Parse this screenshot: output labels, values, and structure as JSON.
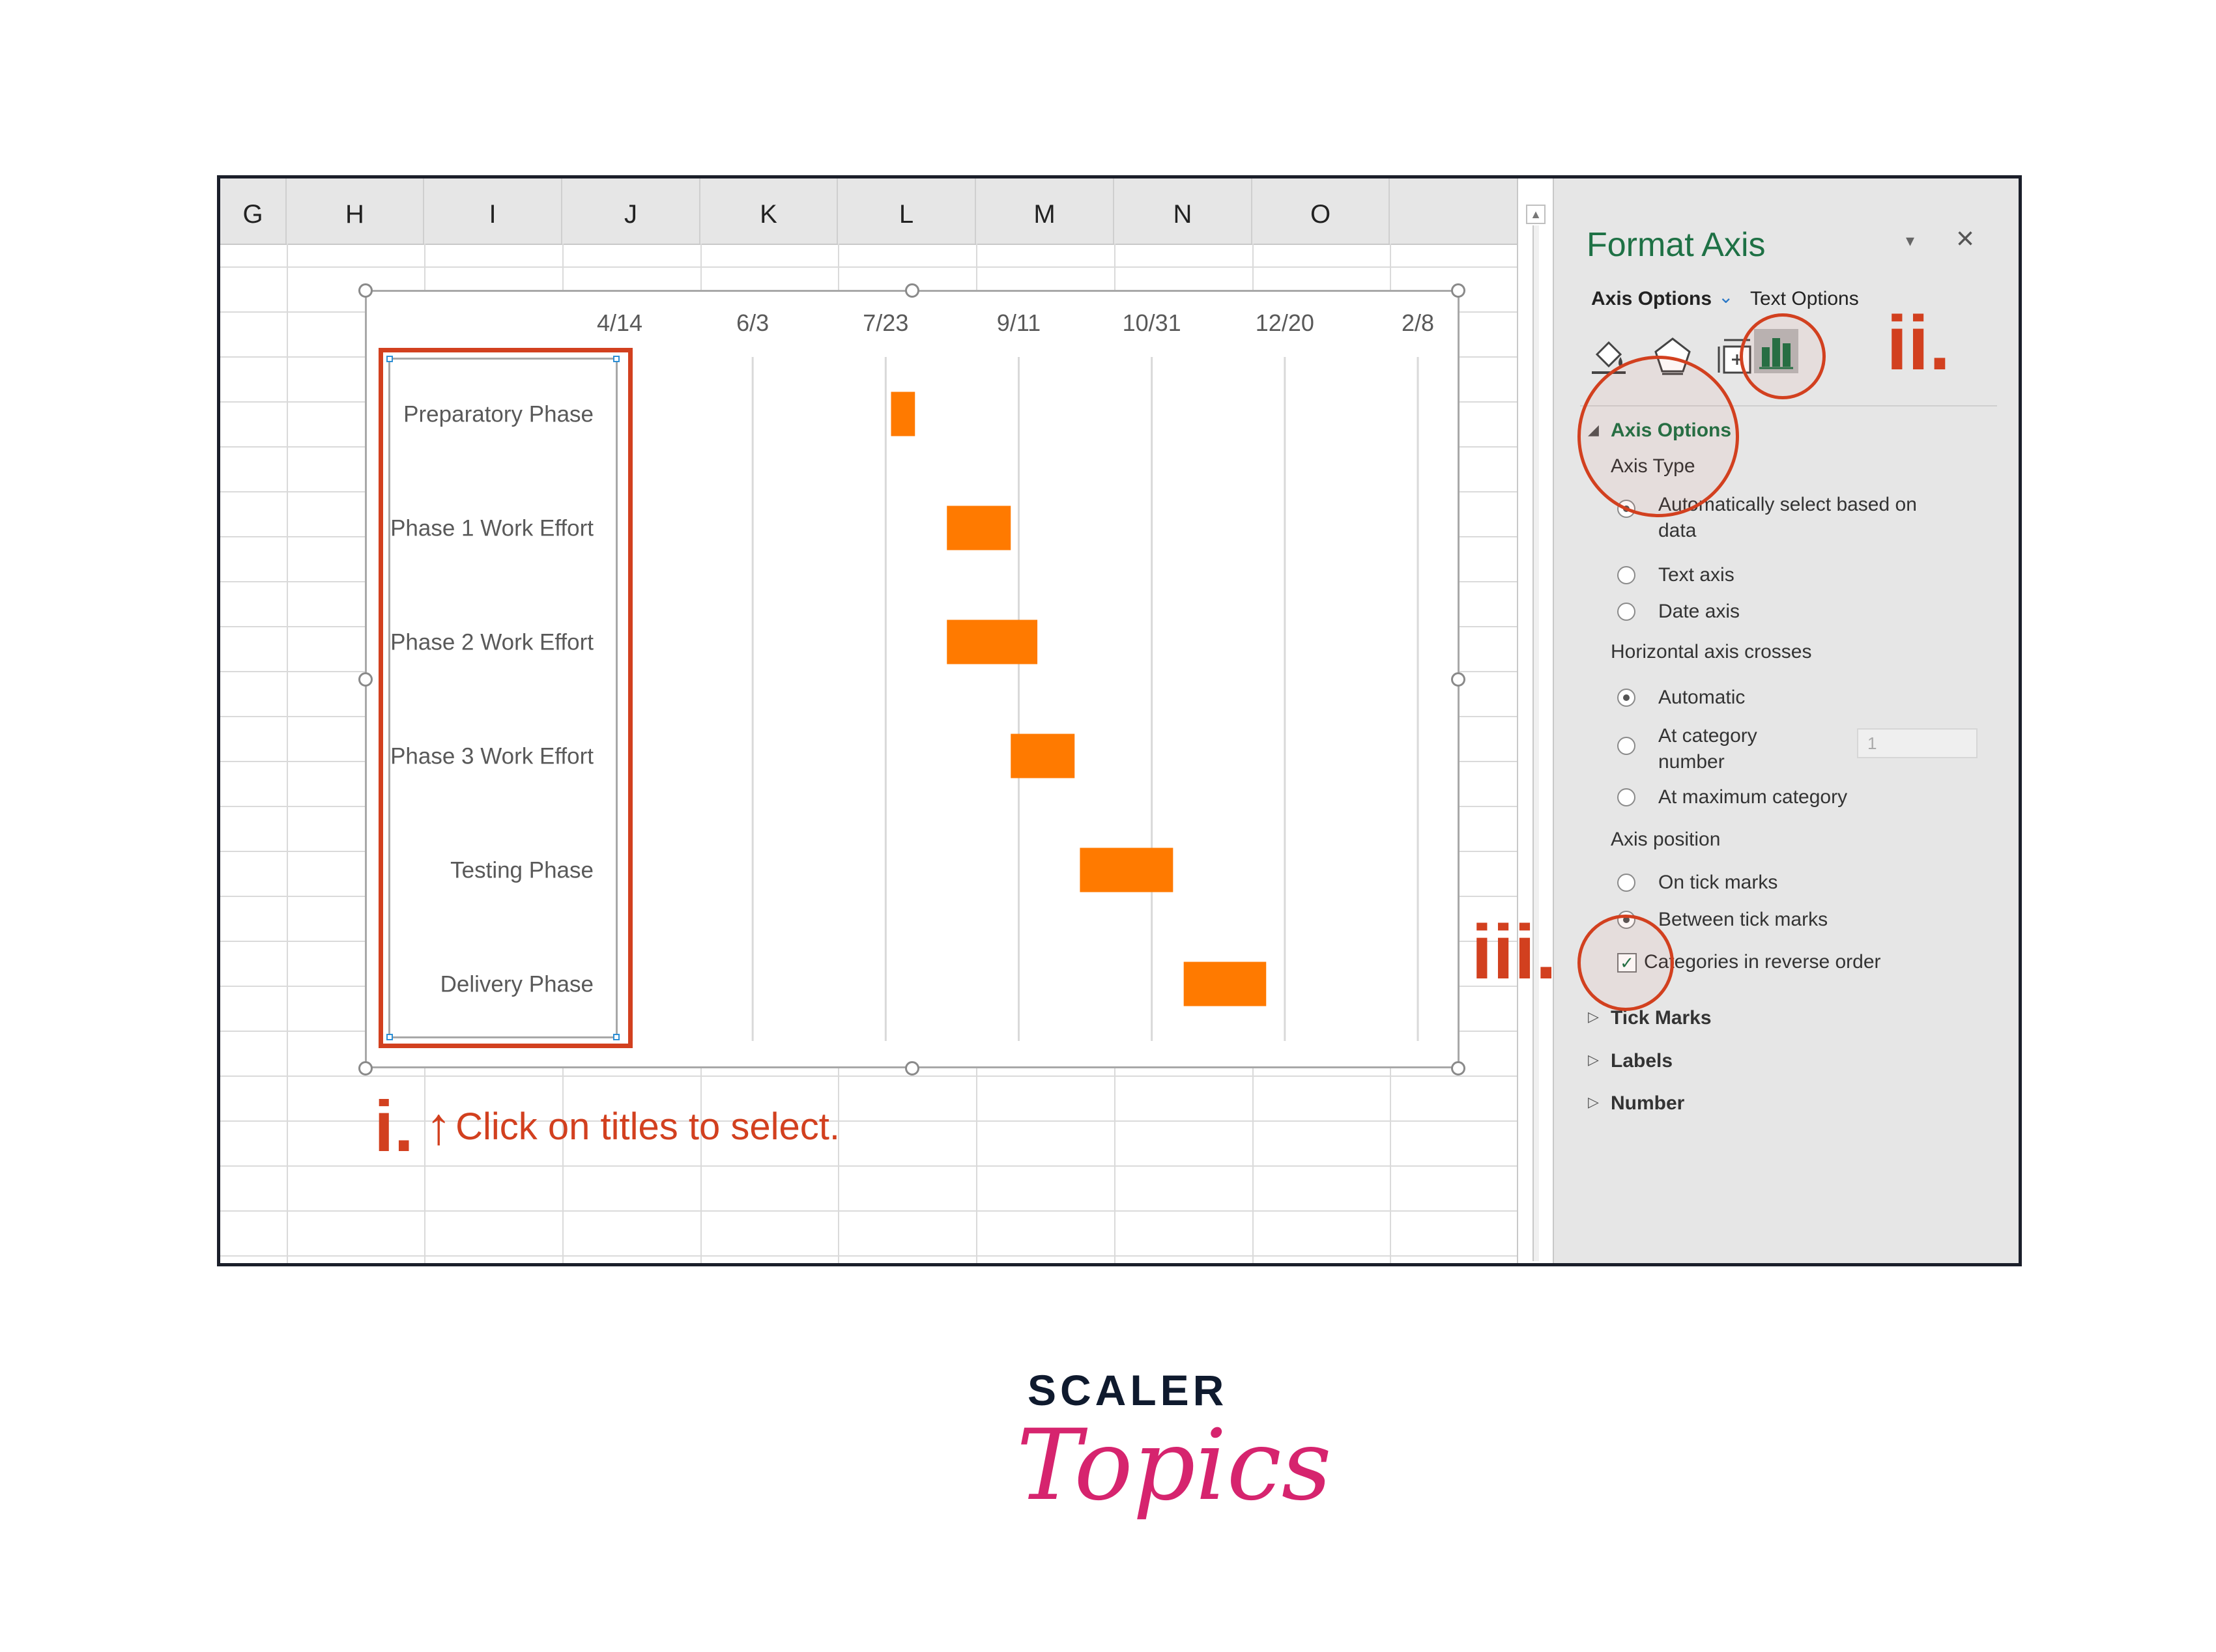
{
  "columns": [
    "G",
    "H",
    "I",
    "J",
    "K",
    "L",
    "M",
    "N",
    "O"
  ],
  "chart_data": {
    "type": "bar",
    "subtype": "gantt",
    "xlabel": "",
    "ylabel": "",
    "x_tick_labels": [
      "4/14",
      "6/3",
      "7/23",
      "9/11",
      "10/31",
      "12/20",
      "2/8"
    ],
    "categories": [
      "Preparatory Phase",
      "Phase 1 Work Effort",
      "Phase 2 Work Effort",
      "Phase 3 Work Effort",
      "Testing Phase",
      "Delivery Phase"
    ],
    "series": [
      {
        "start": [
          "2023-07-25",
          "2023-08-15",
          "2023-08-15",
          "2023-09-08",
          "2023-10-04",
          "2023-11-12"
        ],
        "end": [
          "2023-08-03",
          "2023-09-08",
          "2023-09-18",
          "2023-10-02",
          "2023-11-08",
          "2023-12-13"
        ]
      }
    ],
    "bar_color": "#ff7a00",
    "grid": true,
    "categories_reverse_order": true
  },
  "annotations": {
    "step1_number": "i.",
    "step1_arrow": "↑",
    "step1_text": "Click on titles to select.",
    "step2_number": "ii.",
    "step3_number": "iii."
  },
  "format_panel": {
    "title": "Format Axis",
    "menu_icon": "▾",
    "close_icon": "×",
    "tab_axis_options": "Axis Options",
    "tab_chevron": "⌄",
    "tab_text_options": "Text Options",
    "icons": [
      "fill-line-icon",
      "effects-icon",
      "size-properties-icon",
      "axis-options-icon"
    ],
    "section_axis_options": "Axis Options",
    "axis_type_label": "Axis Type",
    "axis_type_options": [
      "Automatically select based on data",
      "Text axis",
      "Date axis"
    ],
    "axis_type_selected": 0,
    "horizontal_crosses_label": "Horizontal axis crosses",
    "crosses_options": [
      "Automatic",
      "At category number",
      "At maximum category"
    ],
    "crosses_selected": 0,
    "category_number_value": "1",
    "axis_position_label": "Axis position",
    "axis_position_options": [
      "On tick marks",
      "Between tick marks"
    ],
    "axis_position_selected": 1,
    "reverse_order_label": "Categories in reverse order",
    "reverse_order_checked": true,
    "collapsed_sections": [
      "Tick Marks",
      "Labels",
      "Number"
    ]
  },
  "brand": {
    "line1": "SCALER",
    "line2": "Topics"
  }
}
